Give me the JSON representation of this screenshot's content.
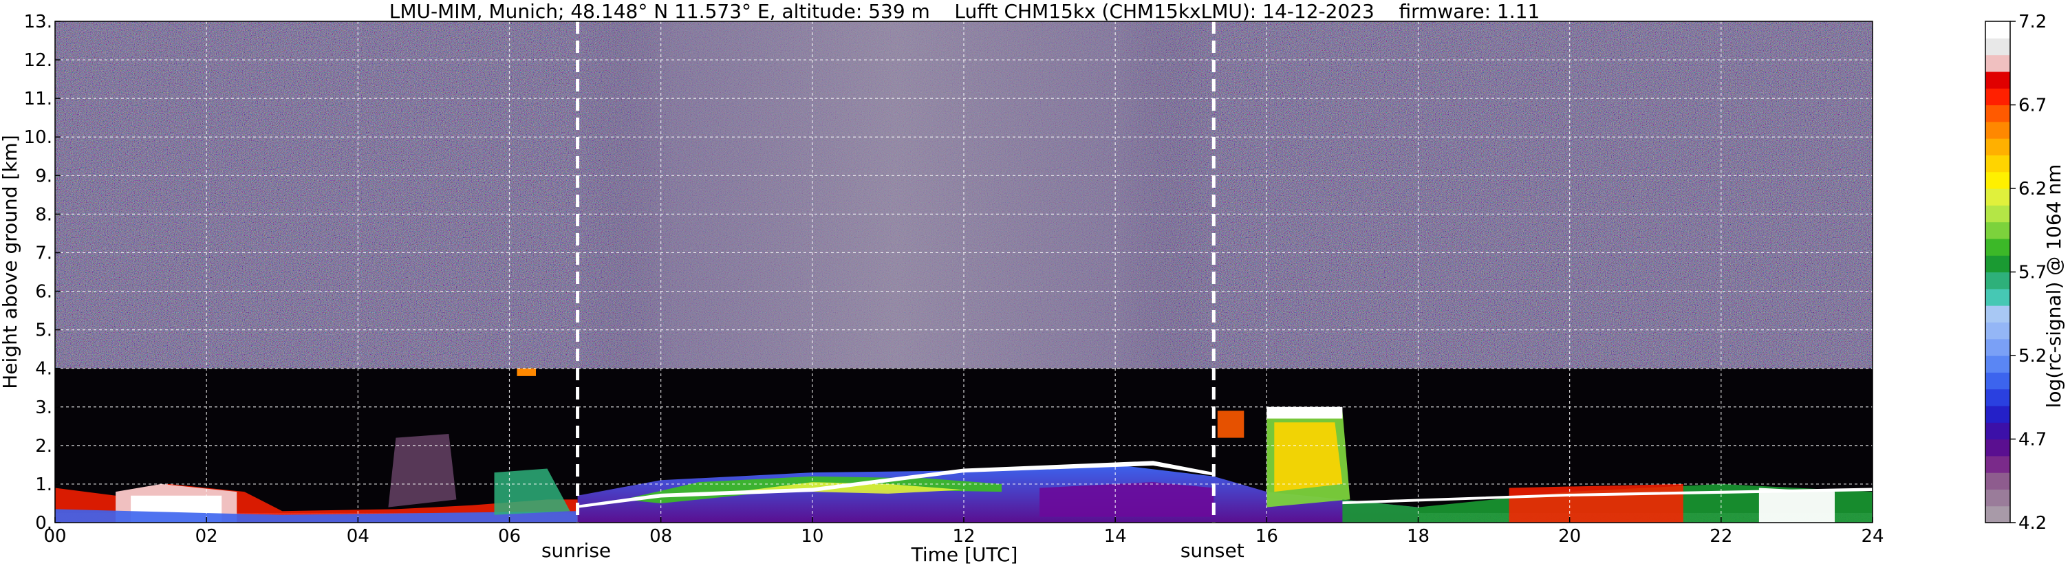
{
  "chart_data": {
    "type": "heatmap",
    "title": "LMU-MIM, Munich; 48.148° N 11.573° E, altitude: 539 m    Lufft CHM15kx (CHM15kxLMU): 14-12-2023    firmware: 1.11",
    "xlabel": "Time [UTC]",
    "ylabel": "Height above ground [km]",
    "colorbar_label": "log(rc-signal) @ 1064 nm",
    "xlim": [
      0,
      24
    ],
    "ylim": [
      0,
      13
    ],
    "x_ticks": [
      0,
      2,
      4,
      6,
      8,
      10,
      12,
      14,
      16,
      18,
      20,
      22,
      24
    ],
    "x_tick_labels": [
      "00",
      "02",
      "04",
      "06",
      "08",
      "10",
      "12",
      "14",
      "16",
      "18",
      "20",
      "22",
      "24"
    ],
    "y_ticks": [
      0,
      1,
      2,
      3,
      4,
      5,
      6,
      7,
      8,
      9,
      10,
      11,
      12,
      13
    ],
    "y_tick_labels": [
      "0.",
      "1.",
      "2.",
      "3.",
      "4.",
      "5.",
      "6.",
      "7.",
      "8.",
      "9.",
      "10.",
      "11.",
      "12.",
      "13."
    ],
    "grid": true,
    "colorbar": {
      "range": [
        4.2,
        7.2
      ],
      "ticks": [
        4.2,
        4.7,
        5.2,
        5.7,
        6.2,
        6.7,
        7.2
      ],
      "tick_labels": [
        "4.2",
        "4.7",
        "5.2",
        "5.7",
        "6.2",
        "6.7",
        "7.2"
      ],
      "colors": [
        "#a89aa8",
        "#9a7c9a",
        "#8e5c8e",
        "#7a2a8a",
        "#5a0f90",
        "#3c10a8",
        "#2420c8",
        "#2a40e0",
        "#3c64ee",
        "#5a86f4",
        "#7aa0f6",
        "#94b6f6",
        "#a8c8f4",
        "#46c8b4",
        "#2eb07a",
        "#1a9a32",
        "#3cb828",
        "#7cd23c",
        "#b4e646",
        "#e0f03c",
        "#fff000",
        "#ffd400",
        "#ffb000",
        "#ff8800",
        "#ff5a00",
        "#ff2000",
        "#e00000",
        "#f0c0c0",
        "#e8e8e8",
        "#ffffff"
      ]
    },
    "events": [
      {
        "label": "sunrise",
        "time": 6.9
      },
      {
        "label": "sunset",
        "time": 15.3
      }
    ]
  }
}
